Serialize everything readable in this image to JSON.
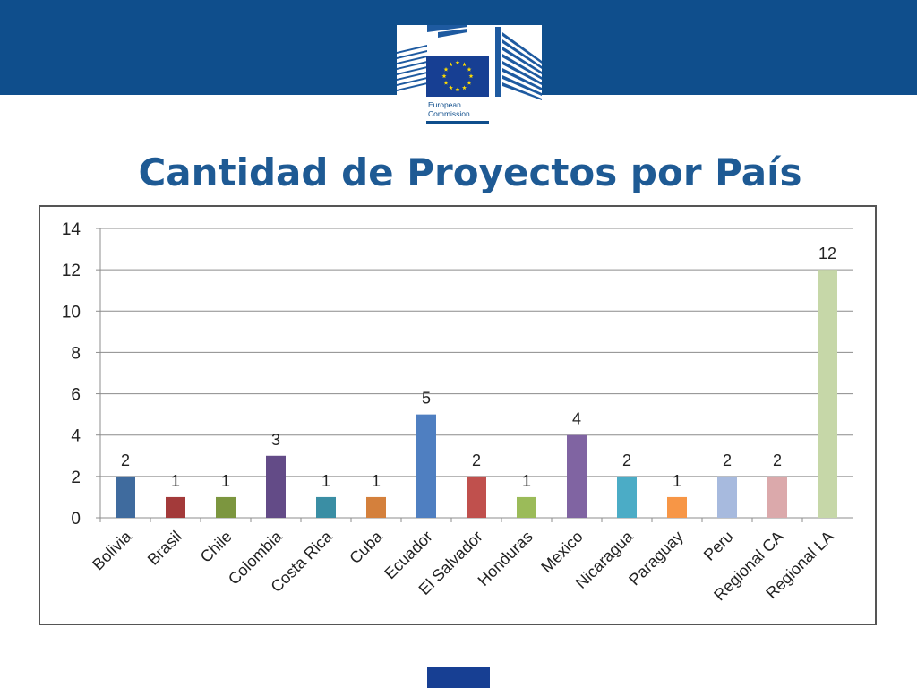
{
  "header": {
    "logo_line1": "European",
    "logo_line2": "Commission",
    "logo_icon": "eu-flag-icon",
    "brand_color": "#0f4e8c",
    "flag_blue": "#173f93",
    "star_color": "#ffdd00"
  },
  "title": "Cantidad de Proyectos por País",
  "chart_data": {
    "type": "bar",
    "title": "",
    "xlabel": "",
    "ylabel": "",
    "ylim": [
      0,
      14
    ],
    "yticks": [
      0,
      2,
      4,
      6,
      8,
      10,
      12,
      14
    ],
    "grid": true,
    "legend": "none",
    "data_labels": true,
    "categories": [
      "Bolivia",
      "Brasil",
      "Chile",
      "Colombia",
      "Costa Rica",
      "Cuba",
      "Ecuador",
      "El Salvador",
      "Honduras",
      "Mexico",
      "Nicaragua",
      "Paraguay",
      "Peru",
      "Regional CA",
      "Regional LA"
    ],
    "values": [
      2,
      1,
      1,
      3,
      1,
      1,
      5,
      2,
      1,
      4,
      2,
      1,
      2,
      2,
      12
    ],
    "colors": [
      "#3f6b9e",
      "#a33a3a",
      "#7c963f",
      "#634b87",
      "#3a8ea4",
      "#d4803c",
      "#4f7fc1",
      "#c0504d",
      "#9bbb59",
      "#8064a2",
      "#4bacc6",
      "#f79646",
      "#a7bade",
      "#dba9ab",
      "#c6d7a8"
    ]
  }
}
